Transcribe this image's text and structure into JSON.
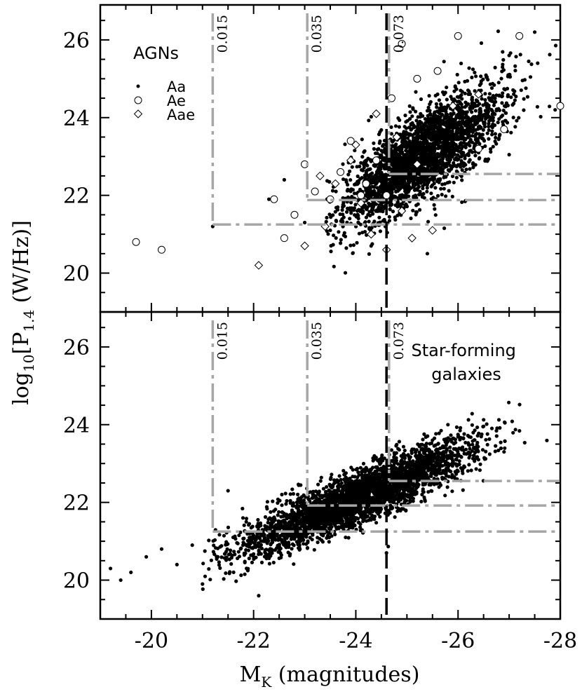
{
  "figure": {
    "xlabel_main": "M",
    "xlabel_sub": "K",
    "xlabel_rest": " (magnitudes)",
    "ylabel_pre": "log",
    "ylabel_sub1": "10",
    "ylabel_mid": "[P",
    "ylabel_sub2": "1.4",
    "ylabel_post": " (W/Hz)]",
    "x_tick_labels": [
      "-20",
      "-22",
      "-24",
      "-26",
      "-28"
    ],
    "y_tick_labels": [
      "20",
      "22",
      "24",
      "26"
    ],
    "z_labels": [
      "0.015",
      "0.035",
      "0.073"
    ]
  },
  "chart_data": [
    {
      "type": "scatter",
      "panel": "top",
      "title": "AGNs",
      "xlim": [
        -19,
        -28
      ],
      "ylim": [
        19,
        26.9
      ],
      "x_ticks": [
        -20,
        -22,
        -24,
        -26,
        -28
      ],
      "y_ticks": [
        20,
        22,
        24,
        26
      ],
      "legend": {
        "placement": "top-left",
        "entries": [
          "Aa",
          "Ae",
          "Aae"
        ]
      },
      "series": [
        {
          "name": "Aa",
          "marker": "filled-circle",
          "points": [
            [
              -21.2,
              21.2
            ],
            [
              -22.3,
              21.9
            ],
            [
              -22.6,
              22.4
            ],
            [
              -23.0,
              21.3
            ],
            [
              -23.5,
              21.1
            ],
            [
              -24.3,
              20.7
            ],
            [
              -25.4,
              20.5
            ],
            [
              -27.0,
              25.6
            ],
            [
              -27.5,
              26.2
            ],
            [
              -27.9,
              24.2
            ],
            [
              -24.9,
              22.3
            ],
            [
              -25.3,
              23.0
            ],
            [
              -25.8,
              23.5
            ],
            [
              -26.2,
              24.0
            ],
            [
              -25.6,
              24.6
            ],
            [
              -24.5,
              22.8
            ]
          ]
        },
        {
          "name": "Ae",
          "marker": "open-circle",
          "points": [
            [
              -19.7,
              20.8
            ],
            [
              -20.2,
              20.6
            ],
            [
              -22.4,
              21.9
            ],
            [
              -22.6,
              20.9
            ],
            [
              -22.8,
              21.5
            ],
            [
              -23.0,
              22.8
            ],
            [
              -23.2,
              22.1
            ],
            [
              -23.5,
              21.9
            ],
            [
              -23.7,
              22.6
            ],
            [
              -23.9,
              23.4
            ],
            [
              -24.2,
              22.3
            ],
            [
              -24.4,
              22.9
            ],
            [
              -24.7,
              24.5
            ],
            [
              -24.9,
              25.9
            ],
            [
              -25.2,
              25.0
            ],
            [
              -25.6,
              25.2
            ],
            [
              -26.0,
              26.1
            ],
            [
              -27.2,
              26.1
            ],
            [
              -28.0,
              24.3
            ],
            [
              -26.9,
              23.7
            ],
            [
              -26.4,
              23.2
            ],
            [
              -24.6,
              22.0
            ],
            [
              -24.1,
              22.0
            ]
          ]
        },
        {
          "name": "Aae",
          "marker": "open-diamond",
          "points": [
            [
              -22.1,
              20.2
            ],
            [
              -23.0,
              20.7
            ],
            [
              -23.4,
              21.2
            ],
            [
              -23.6,
              22.3
            ],
            [
              -23.9,
              22.9
            ],
            [
              -24.1,
              21.8
            ],
            [
              -24.3,
              21.0
            ],
            [
              -24.6,
              20.6
            ],
            [
              -24.9,
              21.6
            ],
            [
              -25.1,
              20.9
            ],
            [
              -25.5,
              21.1
            ],
            [
              -25.2,
              22.8
            ],
            [
              -24.8,
              23.5
            ],
            [
              -24.4,
              24.1
            ],
            [
              -25.9,
              24.3
            ],
            [
              -26.4,
              24.6
            ],
            [
              -23.3,
              22.5
            ],
            [
              -24.0,
              23.3
            ]
          ]
        }
      ],
      "vlines": [
        {
          "x": -21.2,
          "style": "dash-dot",
          "color": "#a6a6a6",
          "label": "0.015"
        },
        {
          "x": -23.05,
          "style": "dash-dot",
          "color": "#a6a6a6",
          "label": "0.035"
        },
        {
          "x": -24.6,
          "style": "dashed",
          "color": "#000000",
          "label": ""
        },
        {
          "x": -24.65,
          "style": "dash-dot",
          "color": "#a6a6a6",
          "label": "0.073"
        }
      ],
      "hlines": [
        {
          "y": 21.25,
          "from_x": -21.2,
          "style": "dash-dot",
          "color": "#a6a6a6"
        },
        {
          "y": 21.88,
          "from_x": -23.05,
          "style": "dash-dot",
          "color": "#a6a6a6"
        },
        {
          "y": 22.55,
          "from_x": -24.65,
          "style": "dash-dot",
          "color": "#a6a6a6"
        }
      ]
    },
    {
      "type": "scatter",
      "panel": "bottom",
      "title": "Star-forming\ngalaxies",
      "xlim": [
        -19,
        -28
      ],
      "ylim": [
        19,
        26.9
      ],
      "x_ticks": [
        -20,
        -22,
        -24,
        -26,
        -28
      ],
      "y_ticks": [
        20,
        22,
        24,
        26
      ],
      "series": [
        {
          "name": "",
          "marker": "filled-circle",
          "points": [
            [
              -19.2,
              20.3
            ],
            [
              -19.4,
              20.0
            ],
            [
              -19.6,
              20.2
            ],
            [
              -19.9,
              20.6
            ],
            [
              -20.2,
              20.8
            ],
            [
              -20.5,
              20.4
            ],
            [
              -20.8,
              20.9
            ],
            [
              -21.0,
              19.9
            ],
            [
              -21.3,
              20.6
            ],
            [
              -21.6,
              21.1
            ],
            [
              -22.1,
              19.6
            ],
            [
              -21.5,
              22.3
            ],
            [
              -22.2,
              21.0
            ],
            [
              -22.6,
              21.3
            ],
            [
              -23.1,
              21.4
            ],
            [
              -23.5,
              21.6
            ],
            [
              -24.0,
              21.8
            ],
            [
              -24.4,
              22.2
            ],
            [
              -24.8,
              22.4
            ],
            [
              -25.2,
              22.5
            ],
            [
              -25.6,
              22.6
            ],
            [
              -26.0,
              22.8
            ],
            [
              -26.4,
              23.1
            ],
            [
              -26.9,
              23.3
            ],
            [
              -24.6,
              20.7
            ],
            [
              -23.8,
              21.1
            ],
            [
              -25.5,
              23.6
            ],
            [
              -22.9,
              22.0
            ]
          ]
        }
      ],
      "vlines": [
        {
          "x": -21.2,
          "style": "dash-dot",
          "color": "#a6a6a6",
          "label": "0.015"
        },
        {
          "x": -23.05,
          "style": "dash-dot",
          "color": "#a6a6a6",
          "label": "0.035"
        },
        {
          "x": -24.6,
          "style": "dashed",
          "color": "#000000",
          "label": ""
        },
        {
          "x": -24.65,
          "style": "dash-dot",
          "color": "#a6a6a6",
          "label": "0.073"
        }
      ],
      "hlines": [
        {
          "y": 21.25,
          "from_x": -21.2,
          "style": "dash-dot",
          "color": "#a6a6a6"
        },
        {
          "y": 21.92,
          "from_x": -23.05,
          "style": "dash-dot",
          "color": "#a6a6a6"
        },
        {
          "y": 22.55,
          "from_x": -24.65,
          "style": "dash-dot",
          "color": "#a6a6a6"
        }
      ]
    }
  ]
}
